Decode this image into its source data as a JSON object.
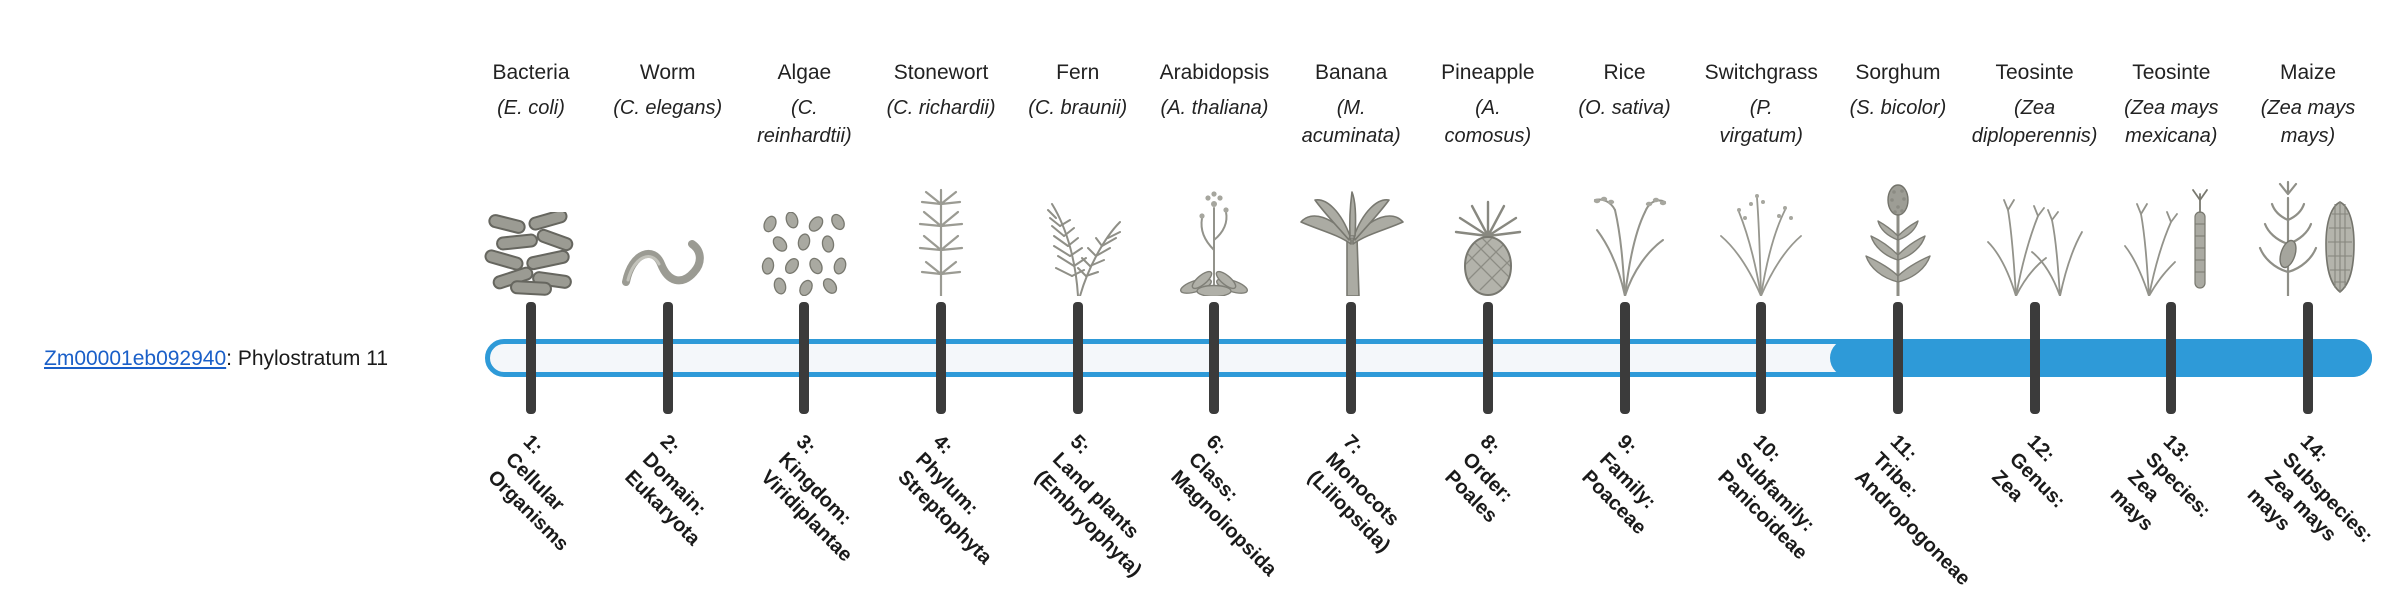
{
  "gene": {
    "id": "Zm00001eb092940",
    "suffix": ": Phylostratum 11",
    "phylostratum": 11
  },
  "timeline": {
    "strata_count": 14,
    "filled_from": 11,
    "bar_color": "#2e9ad8",
    "bar_bg": "#f4f7fa",
    "tick_color": "#3b3b3b",
    "link_color": "#1a5fc8"
  },
  "taxa": [
    {
      "common": "Bacteria",
      "sci": "(E. coli)",
      "icon": "bacteria",
      "stratum": "1:\nCellular\nOrganisms"
    },
    {
      "common": "Worm",
      "sci": "(C. elegans)",
      "icon": "worm",
      "stratum": "2:\nDomain:\nEukaryota"
    },
    {
      "common": "Algae",
      "sci": "(C.\nreinhardtii)",
      "icon": "algae",
      "stratum": "3:\nKingdom:\nViridiplantae"
    },
    {
      "common": "Stonewort",
      "sci": "(C. richardii)",
      "icon": "stonewort",
      "stratum": "4:\nPhylum:\nStreptophyta"
    },
    {
      "common": "Fern",
      "sci": "(C. braunii)",
      "icon": "fern",
      "stratum": "5:\nLand plants\n(Embryophyta)"
    },
    {
      "common": "Arabidopsis",
      "sci": "(A. thaliana)",
      "icon": "arabidopsis",
      "stratum": "6:\nClass:\nMagnoliopsida"
    },
    {
      "common": "Banana",
      "sci": "(M.\nacuminata)",
      "icon": "banana",
      "stratum": "7:\nMonocots\n(Liliopsida)"
    },
    {
      "common": "Pineapple",
      "sci": "(A.\ncomosus)",
      "icon": "pineapple",
      "stratum": "8:\nOrder:\nPoales"
    },
    {
      "common": "Rice",
      "sci": "(O. sativa)",
      "icon": "rice",
      "stratum": "9:\nFamily:\nPoaceae"
    },
    {
      "common": "Switchgrass",
      "sci": "(P.\nvirgatum)",
      "icon": "switchgrass",
      "stratum": "10:\nSubfamily:\nPanicoideae"
    },
    {
      "common": "Sorghum",
      "sci": "(S. bicolor)",
      "icon": "sorghum",
      "stratum": "11:\nTribe:\nAndropogoneae"
    },
    {
      "common": "Teosinte",
      "sci": "(Zea\ndiploperennis)",
      "icon": "teosinte-diploperennis",
      "stratum": "12:\nGenus:\nZea"
    },
    {
      "common": "Teosinte",
      "sci": "(Zea mays\nmexicana)",
      "icon": "teosinte-mexicana",
      "stratum": "13:\nSpecies:\nZea\nmays"
    },
    {
      "common": "Maize",
      "sci": "(Zea mays\nmays)",
      "icon": "maize",
      "stratum": "14:\nSubspecies:\nZea mays\nmays"
    }
  ]
}
